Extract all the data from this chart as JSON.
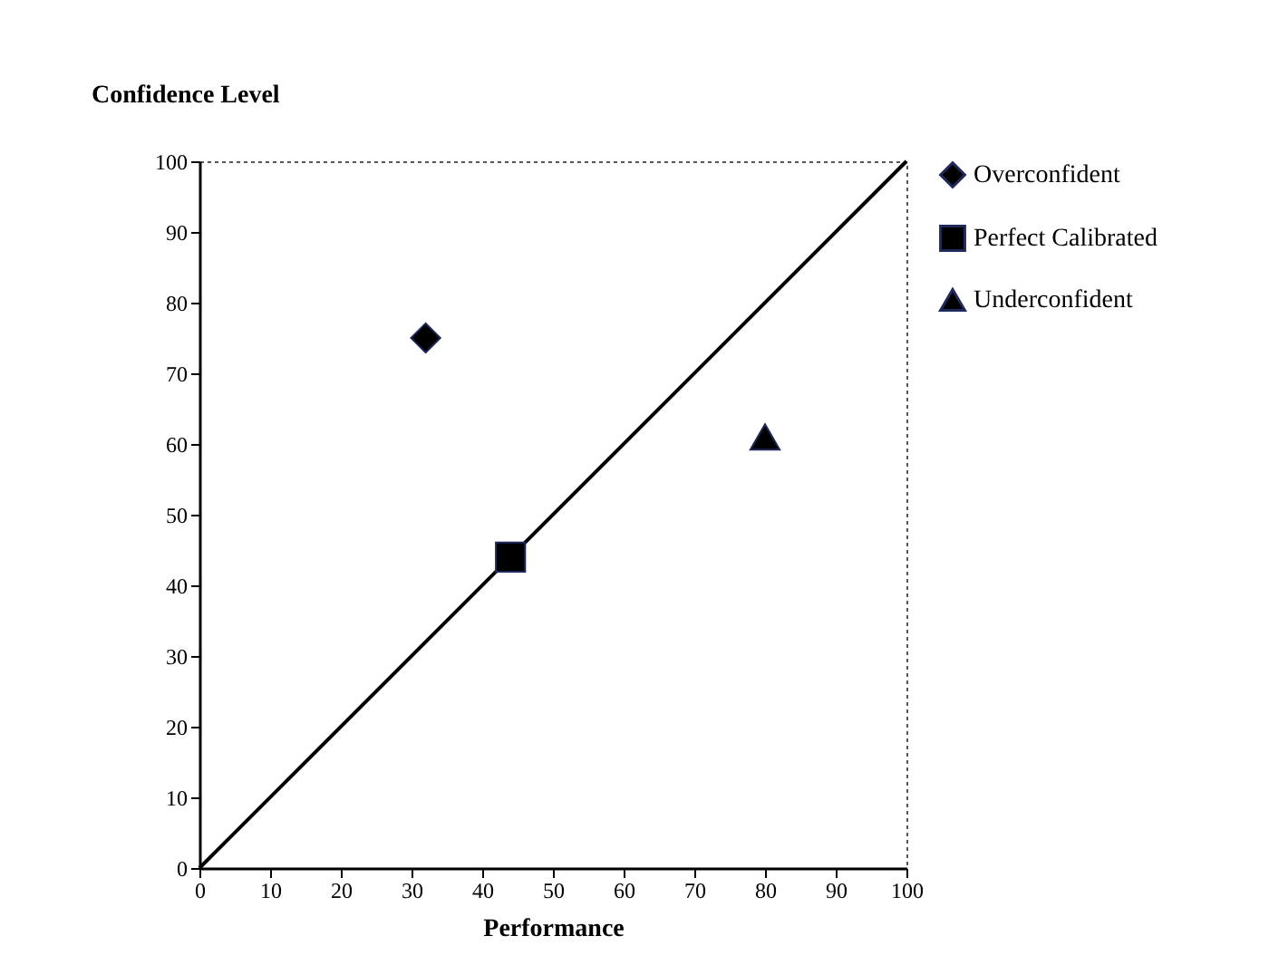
{
  "chart_data": {
    "type": "scatter",
    "xlabel": "Performance",
    "ylabel": "Confidence Level",
    "xlim": [
      0,
      100
    ],
    "ylim": [
      0,
      100
    ],
    "xticks": [
      0,
      10,
      20,
      30,
      40,
      50,
      60,
      70,
      80,
      90,
      100
    ],
    "yticks": [
      0,
      10,
      20,
      30,
      40,
      50,
      60,
      70,
      80,
      90,
      100
    ],
    "grid": false,
    "legend": "right",
    "series": [
      {
        "type": "line",
        "x": [
          0,
          100
        ],
        "values": [
          0,
          100
        ],
        "color": "#000000",
        "line_style": "solid",
        "marker": "none"
      },
      {
        "name": "Overconfident",
        "x": [
          32
        ],
        "values": [
          75
        ],
        "color": "#000000",
        "marker": "diamond"
      },
      {
        "name": "Perfect Calibrated",
        "x": [
          44
        ],
        "values": [
          44
        ],
        "color": "#000000",
        "marker": "square"
      },
      {
        "name": "Underconfident",
        "x": [
          80
        ],
        "values": [
          61
        ],
        "color": "#000000",
        "marker": "triangle"
      }
    ]
  }
}
